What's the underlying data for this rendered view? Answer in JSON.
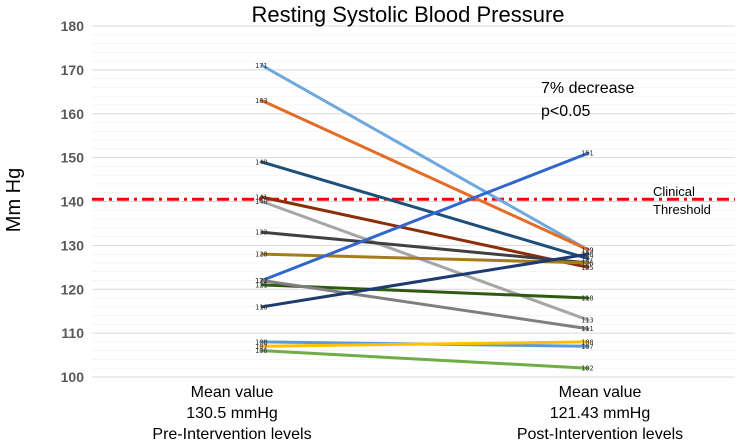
{
  "chart_data": {
    "type": "line",
    "title": "Resting Systolic Blood Pressure",
    "ylabel": "Mm Hg",
    "xlabel": "",
    "ylim": [
      100,
      180
    ],
    "yticks": [
      100,
      110,
      120,
      130,
      140,
      150,
      160,
      170,
      180
    ],
    "grid": true,
    "categories": [
      {
        "line1": "Mean value",
        "line2": "130.5 mmHg",
        "line3": "Pre-Intervention levels"
      },
      {
        "line1": "Mean value",
        "line2": "121.43 mmHg",
        "line3": "Post-Intervention levels"
      }
    ],
    "annotations": {
      "decrease": "7% decrease",
      "pvalue": "p<0.05"
    },
    "threshold": {
      "value": 140.5,
      "label1": "Clinical",
      "label2": "Threshold",
      "color": "#ff0000"
    },
    "series": [
      {
        "name": "s1",
        "values": [
          171,
          129
        ],
        "labels": [
          "171",
          "129"
        ],
        "color": "#6fa8dc"
      },
      {
        "name": "s2",
        "values": [
          163,
          129
        ],
        "labels": [
          "163",
          "129"
        ],
        "color": "#e46c24"
      },
      {
        "name": "s3",
        "values": [
          149,
          127
        ],
        "labels": [
          "149",
          "127"
        ],
        "color": "#1f4e79"
      },
      {
        "name": "s4",
        "values": [
          141,
          125
        ],
        "labels": [
          "141",
          "125"
        ],
        "color": "#8b2e0a"
      },
      {
        "name": "s5",
        "values": [
          140,
          113
        ],
        "labels": [
          "140",
          "113"
        ],
        "color": "#a6a6a6"
      },
      {
        "name": "s6",
        "values": [
          133,
          126
        ],
        "labels": [
          "133",
          "126"
        ],
        "color": "#404040"
      },
      {
        "name": "s7",
        "values": [
          128,
          126
        ],
        "labels": [
          "128",
          "126"
        ],
        "color": "#a47c1a"
      },
      {
        "name": "s8",
        "values": [
          122,
          151
        ],
        "labels": [
          "122",
          "151"
        ],
        "color": "#3366cc"
      },
      {
        "name": "s9",
        "values": [
          121,
          118
        ],
        "labels": [
          "121",
          "118"
        ],
        "color": "#2e5a12"
      },
      {
        "name": "s10",
        "values": [
          122,
          111
        ],
        "labels": [
          "122",
          "111"
        ],
        "color": "#7f7f7f"
      },
      {
        "name": "s11",
        "values": [
          116,
          128
        ],
        "labels": [
          "116",
          "128"
        ],
        "color": "#1f3a6e"
      },
      {
        "name": "s12",
        "values": [
          108,
          107
        ],
        "labels": [
          "108",
          "107"
        ],
        "color": "#5b9bd5"
      },
      {
        "name": "s13",
        "values": [
          107,
          108
        ],
        "labels": [
          "107",
          "108"
        ],
        "color": "#ffc000"
      },
      {
        "name": "s14",
        "values": [
          106,
          102
        ],
        "labels": [
          "106",
          "102"
        ],
        "color": "#70ad47"
      }
    ]
  }
}
